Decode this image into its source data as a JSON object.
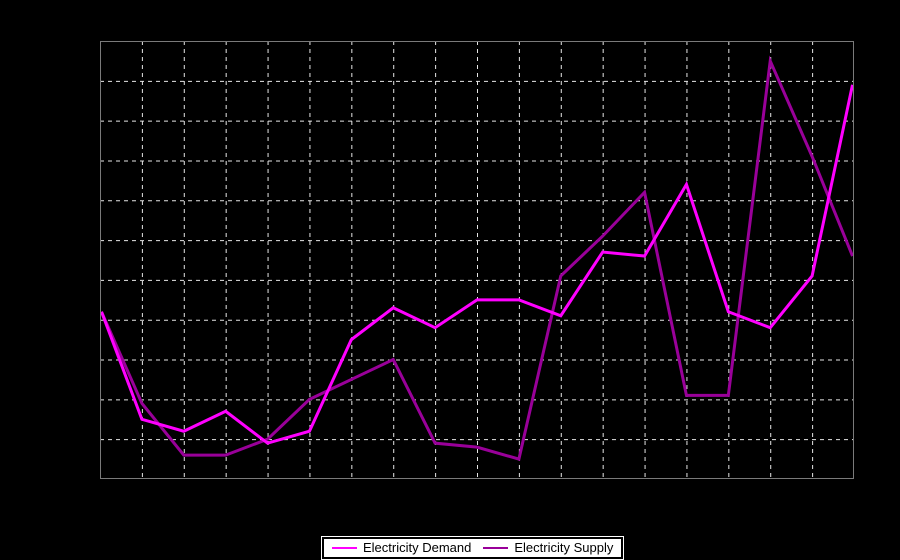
{
  "ui": {
    "legend": {
      "items": [
        {
          "label": "Electricity Demand",
          "color": "#ff00ff"
        },
        {
          "label": "Electricity Supply",
          "color": "#990099"
        }
      ]
    }
  },
  "chart_data": {
    "type": "line",
    "title": "",
    "xlabel": "",
    "ylabel": "",
    "x": [
      0,
      1,
      2,
      3,
      4,
      5,
      6,
      7,
      8,
      9,
      10,
      11,
      12,
      13,
      14,
      15,
      16,
      17,
      18
    ],
    "series": [
      {
        "name": "Electricity Demand",
        "color": "#ff00ff",
        "values": [
          4.2,
          1.5,
          1.2,
          1.7,
          0.9,
          1.2,
          3.5,
          4.3,
          3.8,
          4.5,
          4.5,
          4.1,
          5.7,
          5.6,
          7.4,
          4.2,
          3.8,
          5.1,
          9.9
        ]
      },
      {
        "name": "Electricity Supply",
        "color": "#990099",
        "values": [
          4.2,
          1.9,
          0.6,
          0.6,
          1.0,
          2.0,
          2.5,
          3.0,
          0.9,
          0.8,
          0.5,
          5.1,
          6.1,
          7.2,
          2.1,
          2.1,
          10.5,
          8.1,
          5.6
        ]
      }
    ],
    "xlim": [
      0,
      18
    ],
    "ylim": [
      0,
      11
    ],
    "grid": true,
    "grid_style": "dashed",
    "x_divisions": 18,
    "y_divisions": 11,
    "axis_tick_labels_visible": false,
    "legend_position": "bottom-center"
  },
  "layout_colors": {
    "background": "#000000",
    "plot_border": "#7a7a7a",
    "gridline": "#e6e6e6",
    "legend_background": "#ffffff",
    "legend_border": "#000000",
    "legend_text": "#000000"
  }
}
